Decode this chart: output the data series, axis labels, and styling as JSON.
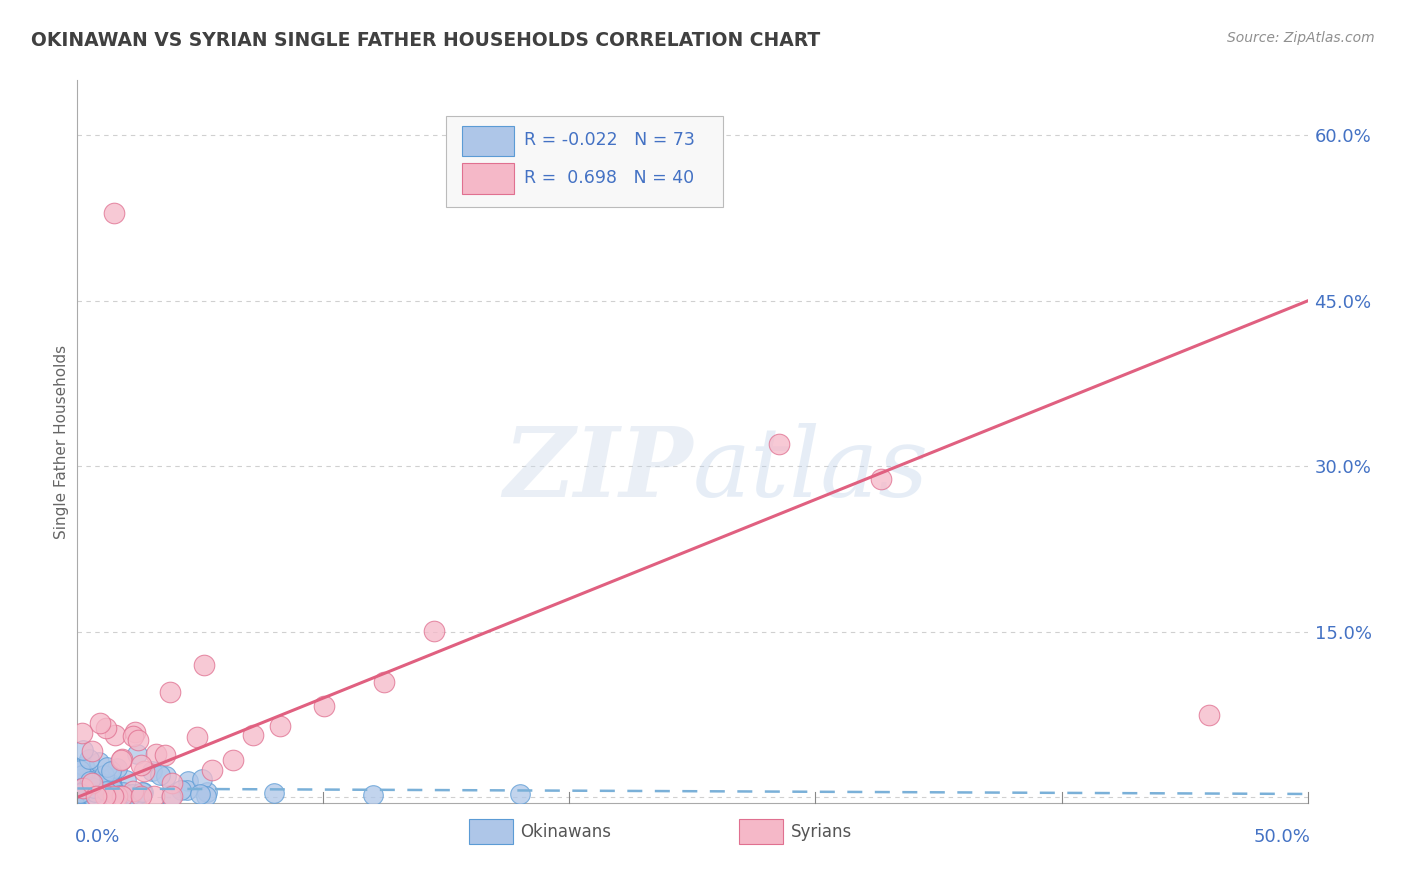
{
  "title": "OKINAWAN VS SYRIAN SINGLE FATHER HOUSEHOLDS CORRELATION CHART",
  "source": "Source: ZipAtlas.com",
  "ylabel": "Single Father Households",
  "right_yticks": [
    0.0,
    0.15,
    0.3,
    0.45,
    0.6
  ],
  "right_yticklabels": [
    "",
    "15.0%",
    "30.0%",
    "45.0%",
    "60.0%"
  ],
  "xlim": [
    0.0,
    0.5
  ],
  "ylim": [
    -0.005,
    0.65
  ],
  "okinawan_color": "#aec6e8",
  "syrian_color": "#f5b8c8",
  "okinawan_edge": "#5b9bd5",
  "syrian_edge": "#e07090",
  "trend_okinawan_color": "#7ab0d8",
  "trend_syrian_color": "#e06080",
  "R_okinawan": -0.022,
  "N_okinawan": 73,
  "R_syrian": 0.698,
  "N_syrian": 40,
  "watermark": "ZIPatlas",
  "grid_color": "#d0d0d0",
  "background_color": "#ffffff",
  "title_color": "#404040",
  "source_color": "#909090",
  "axis_label_color": "#4472c4",
  "legend_text_color": "#4472c4",
  "ok_trend_start_x": 0.0,
  "ok_trend_end_x": 0.5,
  "ok_trend_start_y": 0.008,
  "ok_trend_end_y": 0.003,
  "sy_trend_start_x": 0.0,
  "sy_trend_end_x": 0.5,
  "sy_trend_start_y": 0.0,
  "sy_trend_end_y": 0.45,
  "xtick_positions": [
    0.0,
    0.1,
    0.2,
    0.3,
    0.4,
    0.5
  ],
  "ytick_grid_positions": [
    0.0,
    0.15,
    0.3,
    0.45,
    0.6
  ]
}
